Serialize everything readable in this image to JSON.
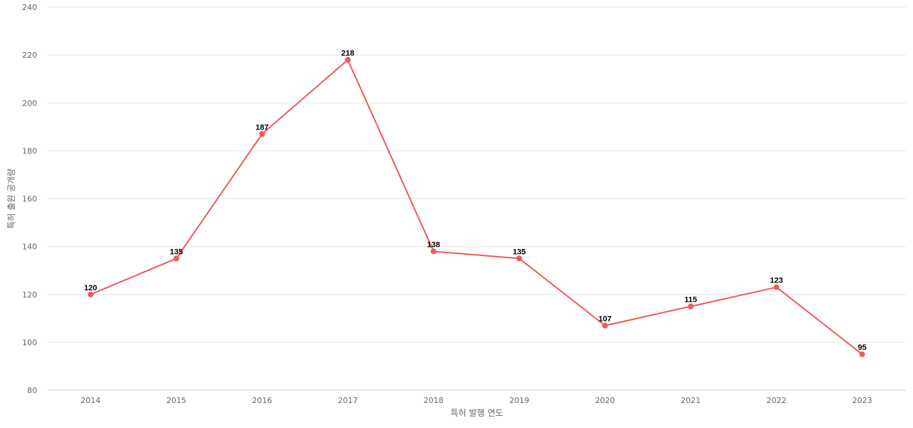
{
  "chart_data": {
    "type": "line",
    "title": "",
    "xlabel": "특허 발행 연도",
    "ylabel": "특허 출원 공개량",
    "categories": [
      "2014",
      "2015",
      "2016",
      "2017",
      "2018",
      "2019",
      "2020",
      "2021",
      "2022",
      "2023"
    ],
    "series": [
      {
        "values": [
          120,
          135,
          187,
          218,
          138,
          135,
          107,
          115,
          123,
          95
        ],
        "color": "#ef5a5a"
      }
    ],
    "ylim": [
      80,
      240
    ],
    "yticks": [
      80,
      100,
      120,
      140,
      160,
      180,
      200,
      220,
      240
    ],
    "grid": true,
    "data_labels": true,
    "legend": "none"
  }
}
